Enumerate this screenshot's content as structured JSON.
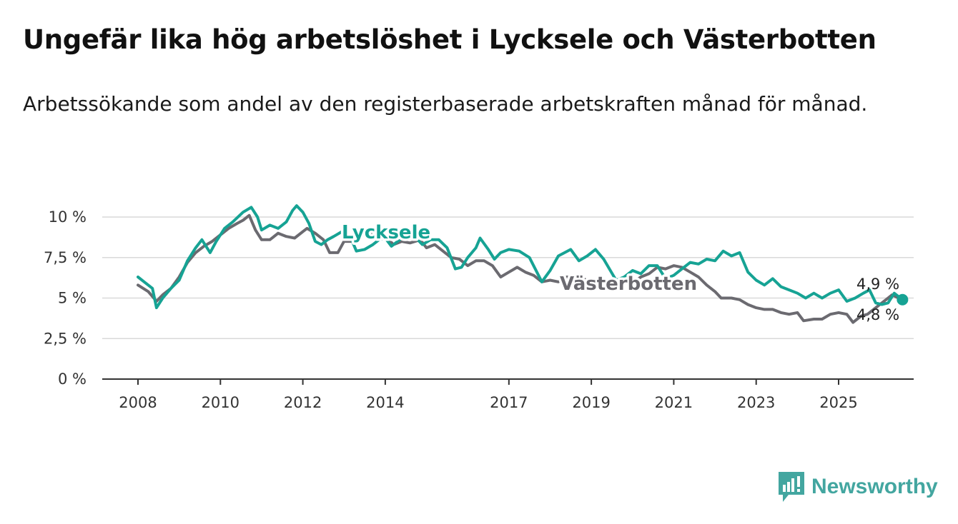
{
  "title": "Ungefär lika hög arbetslöshet i Lycksele och Västerbotten",
  "subtitle": "Arbetssökande som andel av den registerbaserade arbetskraften månad för månad.",
  "brand": {
    "name": "Newsworthy",
    "icon": "newsworthy-logo-icon",
    "color": "#43a6a0"
  },
  "colors": {
    "lycksele": "#16a394",
    "vasterbotten": "#6b6a70",
    "grid": "#d9d9d9",
    "axis": "#333333"
  },
  "chart_data": {
    "type": "line",
    "title": "Ungefär lika hög arbetslöshet i Lycksele och Västerbotten",
    "xlabel": "",
    "ylabel": "",
    "ylim": [
      0,
      10
    ],
    "xlim": [
      2008,
      2026.55
    ],
    "x_ticks": [
      {
        "value": 2008,
        "label": "2008"
      },
      {
        "value": 2010,
        "label": "2010"
      },
      {
        "value": 2012,
        "label": "2012"
      },
      {
        "value": 2014,
        "label": "2014"
      },
      {
        "value": 2017,
        "label": "2017"
      },
      {
        "value": 2019,
        "label": "2019"
      },
      {
        "value": 2021,
        "label": "2021"
      },
      {
        "value": 2023,
        "label": "2023"
      },
      {
        "value": 2025,
        "label": "2025"
      }
    ],
    "y_ticks": [
      {
        "value": 0,
        "label": "0 %"
      },
      {
        "value": 2.5,
        "label": "2,5 %"
      },
      {
        "value": 5,
        "label": "5 %"
      },
      {
        "value": 7.5,
        "label": "7,5 %"
      },
      {
        "value": 10,
        "label": "10 %"
      }
    ],
    "series": [
      {
        "name": "Västerbotten",
        "color": "#6b6a70",
        "points": [
          [
            2008.0,
            5.8
          ],
          [
            2008.25,
            5.4
          ],
          [
            2008.45,
            4.8
          ],
          [
            2008.6,
            5.2
          ],
          [
            2008.8,
            5.6
          ],
          [
            2009.0,
            6.3
          ],
          [
            2009.2,
            7.2
          ],
          [
            2009.4,
            7.8
          ],
          [
            2009.6,
            8.2
          ],
          [
            2009.8,
            8.5
          ],
          [
            2010.0,
            8.9
          ],
          [
            2010.2,
            9.3
          ],
          [
            2010.4,
            9.6
          ],
          [
            2010.55,
            9.8
          ],
          [
            2010.7,
            10.1
          ],
          [
            2010.85,
            9.2
          ],
          [
            2011.0,
            8.6
          ],
          [
            2011.2,
            8.6
          ],
          [
            2011.4,
            9.0
          ],
          [
            2011.6,
            8.8
          ],
          [
            2011.8,
            8.7
          ],
          [
            2012.0,
            9.1
          ],
          [
            2012.1,
            9.3
          ],
          [
            2012.3,
            9.0
          ],
          [
            2012.5,
            8.6
          ],
          [
            2012.65,
            7.8
          ],
          [
            2012.85,
            7.8
          ],
          [
            2013.0,
            8.5
          ],
          [
            2013.2,
            8.5
          ],
          [
            2013.4,
            8.8
          ],
          [
            2013.6,
            9.0
          ],
          [
            2013.8,
            8.9
          ],
          [
            2014.0,
            8.8
          ],
          [
            2014.2,
            8.3
          ],
          [
            2014.4,
            8.5
          ],
          [
            2014.6,
            8.4
          ],
          [
            2014.85,
            8.6
          ],
          [
            2015.0,
            8.1
          ],
          [
            2015.2,
            8.3
          ],
          [
            2015.4,
            7.9
          ],
          [
            2015.6,
            7.5
          ],
          [
            2015.8,
            7.4
          ],
          [
            2016.0,
            7.0
          ],
          [
            2016.2,
            7.3
          ],
          [
            2016.4,
            7.3
          ],
          [
            2016.6,
            7.0
          ],
          [
            2016.8,
            6.3
          ],
          [
            2017.0,
            6.6
          ],
          [
            2017.2,
            6.9
          ],
          [
            2017.4,
            6.6
          ],
          [
            2017.6,
            6.4
          ],
          [
            2017.8,
            6.0
          ],
          [
            2018.0,
            6.1
          ],
          [
            2018.2,
            6.0
          ],
          [
            2018.4,
            6.3
          ],
          [
            2018.6,
            6.3
          ],
          [
            2018.8,
            6.2
          ],
          [
            2019.0,
            6.0
          ],
          [
            2019.2,
            5.6
          ],
          [
            2019.4,
            5.6
          ],
          [
            2019.6,
            5.6
          ],
          [
            2019.8,
            6.0
          ],
          [
            2020.0,
            5.9
          ],
          [
            2020.2,
            6.3
          ],
          [
            2020.4,
            6.5
          ],
          [
            2020.6,
            6.9
          ],
          [
            2020.8,
            6.8
          ],
          [
            2021.0,
            7.0
          ],
          [
            2021.2,
            6.9
          ],
          [
            2021.4,
            6.6
          ],
          [
            2021.6,
            6.3
          ],
          [
            2021.8,
            5.8
          ],
          [
            2022.0,
            5.4
          ],
          [
            2022.15,
            5.0
          ],
          [
            2022.4,
            5.0
          ],
          [
            2022.6,
            4.9
          ],
          [
            2022.8,
            4.6
          ],
          [
            2023.0,
            4.4
          ],
          [
            2023.2,
            4.3
          ],
          [
            2023.4,
            4.3
          ],
          [
            2023.6,
            4.1
          ],
          [
            2023.8,
            4.0
          ],
          [
            2024.0,
            4.1
          ],
          [
            2024.15,
            3.6
          ],
          [
            2024.4,
            3.7
          ],
          [
            2024.6,
            3.7
          ],
          [
            2024.8,
            4.0
          ],
          [
            2025.0,
            4.1
          ],
          [
            2025.2,
            4.0
          ],
          [
            2025.35,
            3.5
          ],
          [
            2025.55,
            3.9
          ],
          [
            2025.7,
            4.0
          ],
          [
            2025.85,
            4.3
          ],
          [
            2026.0,
            4.6
          ],
          [
            2026.15,
            4.9
          ],
          [
            2026.3,
            5.2
          ],
          [
            2026.45,
            5.0
          ],
          [
            2026.55,
            4.8
          ]
        ],
        "end_label": "4,8 %",
        "name_label": "Västerbotten"
      },
      {
        "name": "Lycksele",
        "color": "#16a394",
        "points": [
          [
            2008.0,
            6.3
          ],
          [
            2008.15,
            6.0
          ],
          [
            2008.35,
            5.6
          ],
          [
            2008.45,
            4.4
          ],
          [
            2008.6,
            5.0
          ],
          [
            2008.8,
            5.6
          ],
          [
            2009.0,
            6.1
          ],
          [
            2009.2,
            7.3
          ],
          [
            2009.4,
            8.1
          ],
          [
            2009.55,
            8.6
          ],
          [
            2009.75,
            7.8
          ],
          [
            2009.9,
            8.5
          ],
          [
            2010.1,
            9.3
          ],
          [
            2010.3,
            9.7
          ],
          [
            2010.55,
            10.3
          ],
          [
            2010.75,
            10.6
          ],
          [
            2010.9,
            10.0
          ],
          [
            2011.0,
            9.2
          ],
          [
            2011.2,
            9.5
          ],
          [
            2011.4,
            9.3
          ],
          [
            2011.6,
            9.7
          ],
          [
            2011.75,
            10.4
          ],
          [
            2011.85,
            10.7
          ],
          [
            2012.0,
            10.3
          ],
          [
            2012.15,
            9.6
          ],
          [
            2012.3,
            8.5
          ],
          [
            2012.45,
            8.3
          ],
          [
            2012.6,
            8.6
          ],
          [
            2012.75,
            8.8
          ],
          [
            2012.95,
            9.1
          ],
          [
            2013.15,
            8.8
          ],
          [
            2013.3,
            7.9
          ],
          [
            2013.5,
            8.0
          ],
          [
            2013.7,
            8.3
          ],
          [
            2013.85,
            8.6
          ],
          [
            2014.0,
            8.7
          ],
          [
            2014.15,
            8.2
          ],
          [
            2014.35,
            8.6
          ],
          [
            2014.55,
            9.0
          ],
          [
            2014.75,
            8.7
          ],
          [
            2014.9,
            8.3
          ],
          [
            2015.1,
            8.6
          ],
          [
            2015.3,
            8.6
          ],
          [
            2015.5,
            8.1
          ],
          [
            2015.7,
            6.8
          ],
          [
            2015.85,
            6.9
          ],
          [
            2016.0,
            7.5
          ],
          [
            2016.2,
            8.1
          ],
          [
            2016.3,
            8.7
          ],
          [
            2016.5,
            8.0
          ],
          [
            2016.65,
            7.4
          ],
          [
            2016.8,
            7.8
          ],
          [
            2017.0,
            8.0
          ],
          [
            2017.25,
            7.9
          ],
          [
            2017.5,
            7.5
          ],
          [
            2017.8,
            6.0
          ],
          [
            2018.0,
            6.7
          ],
          [
            2018.2,
            7.6
          ],
          [
            2018.5,
            8.0
          ],
          [
            2018.7,
            7.3
          ],
          [
            2018.9,
            7.6
          ],
          [
            2019.1,
            8.0
          ],
          [
            2019.3,
            7.4
          ],
          [
            2019.6,
            6.1
          ],
          [
            2019.8,
            6.3
          ],
          [
            2020.0,
            6.7
          ],
          [
            2020.2,
            6.5
          ],
          [
            2020.4,
            7.0
          ],
          [
            2020.6,
            7.0
          ],
          [
            2020.8,
            6.2
          ],
          [
            2021.0,
            6.4
          ],
          [
            2021.2,
            6.8
          ],
          [
            2021.4,
            7.2
          ],
          [
            2021.6,
            7.1
          ],
          [
            2021.8,
            7.4
          ],
          [
            2022.0,
            7.3
          ],
          [
            2022.2,
            7.9
          ],
          [
            2022.4,
            7.6
          ],
          [
            2022.6,
            7.8
          ],
          [
            2022.8,
            6.6
          ],
          [
            2023.0,
            6.1
          ],
          [
            2023.2,
            5.8
          ],
          [
            2023.4,
            6.2
          ],
          [
            2023.6,
            5.7
          ],
          [
            2023.8,
            5.5
          ],
          [
            2024.0,
            5.3
          ],
          [
            2024.2,
            5.0
          ],
          [
            2024.4,
            5.3
          ],
          [
            2024.6,
            5.0
          ],
          [
            2024.8,
            5.3
          ],
          [
            2025.0,
            5.5
          ],
          [
            2025.2,
            4.8
          ],
          [
            2025.4,
            5.0
          ],
          [
            2025.6,
            5.3
          ],
          [
            2025.75,
            5.5
          ],
          [
            2025.9,
            4.7
          ],
          [
            2026.05,
            4.6
          ],
          [
            2026.2,
            4.7
          ],
          [
            2026.35,
            5.3
          ],
          [
            2026.55,
            4.9
          ]
        ],
        "end_label": "4,9 %",
        "name_label": "Lycksele"
      }
    ],
    "legend": "inline"
  }
}
